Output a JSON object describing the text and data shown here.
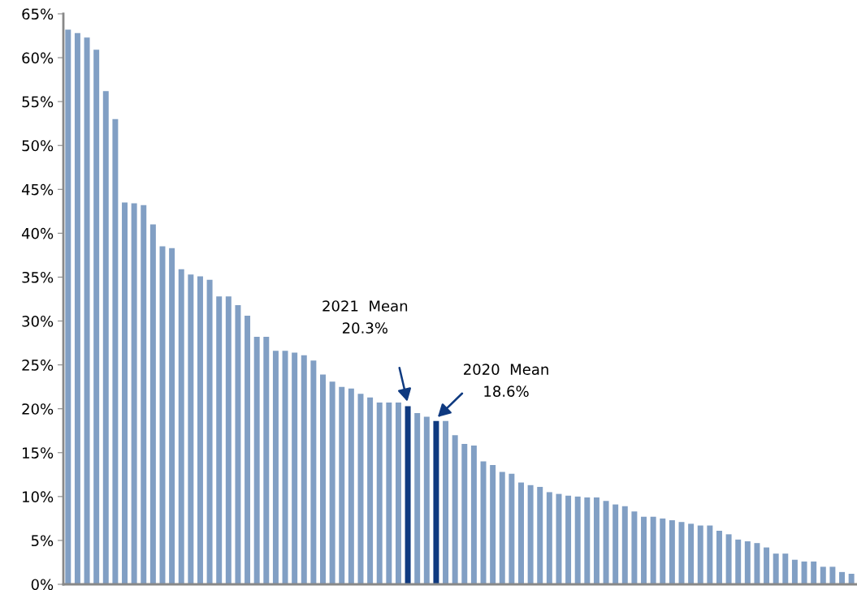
{
  "chart_data": {
    "type": "bar",
    "categories": [
      null,
      null,
      null,
      null,
      null,
      null,
      null,
      null,
      null,
      null,
      null,
      null,
      null,
      null,
      null,
      null,
      null,
      null,
      null,
      null,
      null,
      null,
      null,
      null,
      null,
      null,
      null,
      null,
      null,
      null,
      null,
      null,
      null,
      null,
      null,
      null,
      null,
      null,
      null,
      null,
      null,
      null,
      null,
      null,
      null,
      null,
      null,
      null,
      null,
      null,
      null,
      null,
      null,
      null,
      null,
      null,
      null,
      null,
      null,
      null,
      null,
      null,
      null,
      null,
      null,
      null,
      null,
      null,
      null,
      null,
      null,
      null,
      null,
      null,
      null,
      null,
      null,
      null,
      null,
      null,
      null,
      null,
      null,
      null
    ],
    "values": [
      63.2,
      62.8,
      62.3,
      60.9,
      56.2,
      53.0,
      43.5,
      43.4,
      43.2,
      41.0,
      38.5,
      38.3,
      35.9,
      35.3,
      35.1,
      34.7,
      32.8,
      32.8,
      31.8,
      30.6,
      28.2,
      28.2,
      26.6,
      26.6,
      26.4,
      26.1,
      25.5,
      23.9,
      23.1,
      22.5,
      22.3,
      21.7,
      21.3,
      20.7,
      20.7,
      20.7,
      20.3,
      19.5,
      19.1,
      18.6,
      18.6,
      17.0,
      16.0,
      15.8,
      14.0,
      13.6,
      12.8,
      12.6,
      11.6,
      11.3,
      11.1,
      10.5,
      10.3,
      10.1,
      10.0,
      9.9,
      9.9,
      9.5,
      9.1,
      8.9,
      8.3,
      7.7,
      7.7,
      7.5,
      7.3,
      7.1,
      6.9,
      6.7,
      6.7,
      6.1,
      5.7,
      5.1,
      4.9,
      4.7,
      4.2,
      3.5,
      3.5,
      2.8,
      2.6,
      2.6,
      2.0,
      2.0,
      1.4,
      1.2
    ],
    "colors": [
      "#819fc4",
      "#819fc4",
      "#819fc4",
      "#819fc4",
      "#819fc4",
      "#819fc4",
      "#819fc4",
      "#819fc4",
      "#819fc4",
      "#819fc4",
      "#819fc4",
      "#819fc4",
      "#819fc4",
      "#819fc4",
      "#819fc4",
      "#819fc4",
      "#819fc4",
      "#819fc4",
      "#819fc4",
      "#819fc4",
      "#819fc4",
      "#819fc4",
      "#819fc4",
      "#819fc4",
      "#819fc4",
      "#819fc4",
      "#819fc4",
      "#819fc4",
      "#819fc4",
      "#819fc4",
      "#819fc4",
      "#819fc4",
      "#819fc4",
      "#819fc4",
      "#819fc4",
      "#819fc4",
      "#0f3a80",
      "#819fc4",
      "#819fc4",
      "#0f3a80",
      "#819fc4",
      "#819fc4",
      "#819fc4",
      "#819fc4",
      "#819fc4",
      "#819fc4",
      "#819fc4",
      "#819fc4",
      "#819fc4",
      "#819fc4",
      "#819fc4",
      "#819fc4",
      "#819fc4",
      "#819fc4",
      "#819fc4",
      "#819fc4",
      "#819fc4",
      "#819fc4",
      "#819fc4",
      "#819fc4",
      "#819fc4",
      "#819fc4",
      "#819fc4",
      "#819fc4",
      "#819fc4",
      "#819fc4",
      "#819fc4",
      "#819fc4",
      "#819fc4",
      "#819fc4",
      "#819fc4",
      "#819fc4",
      "#819fc4",
      "#819fc4",
      "#819fc4",
      "#819fc4",
      "#819fc4",
      "#819fc4",
      "#819fc4",
      "#819fc4",
      "#819fc4",
      "#819fc4",
      "#819fc4",
      "#819fc4"
    ],
    "ylim": [
      0,
      65
    ],
    "yticks": [
      {
        "value": 0,
        "label": "0%"
      },
      {
        "value": 5,
        "label": "5%"
      },
      {
        "value": 10,
        "label": "10%"
      },
      {
        "value": 15,
        "label": "15%"
      },
      {
        "value": 20,
        "label": "20%"
      },
      {
        "value": 25,
        "label": "25%"
      },
      {
        "value": 30,
        "label": "30%"
      },
      {
        "value": 35,
        "label": "35%"
      },
      {
        "value": 40,
        "label": "40%"
      },
      {
        "value": 45,
        "label": "45%"
      },
      {
        "value": 50,
        "label": "50%"
      },
      {
        "value": 55,
        "label": "55%"
      },
      {
        "value": 60,
        "label": "60%"
      },
      {
        "value": 65,
        "label": "65%"
      }
    ],
    "annotations": [
      "2021  Mean\n20.3%",
      "2020  Mean\n18.6%"
    ],
    "grid": false
  }
}
